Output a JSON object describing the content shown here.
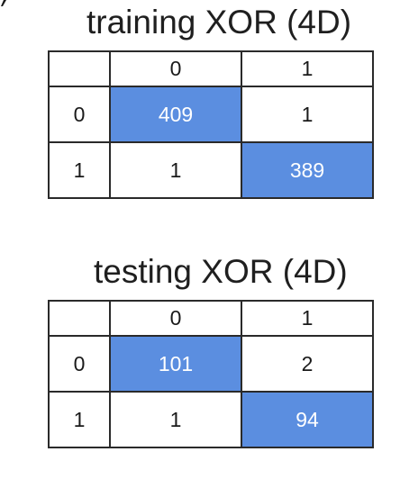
{
  "chart_data": [
    {
      "type": "table",
      "title": "training XOR (4D)",
      "column_labels": [
        "0",
        "1"
      ],
      "row_labels": [
        "0",
        "1"
      ],
      "values": [
        [
          409,
          1
        ],
        [
          1,
          389
        ]
      ],
      "highlight_color": "#5b8ee0"
    },
    {
      "type": "table",
      "title": "testing XOR (4D)",
      "column_labels": [
        "0",
        "1"
      ],
      "row_labels": [
        "0",
        "1"
      ],
      "values": [
        [
          101,
          2
        ],
        [
          1,
          94
        ]
      ],
      "highlight_color": "#5b8ee0"
    }
  ]
}
